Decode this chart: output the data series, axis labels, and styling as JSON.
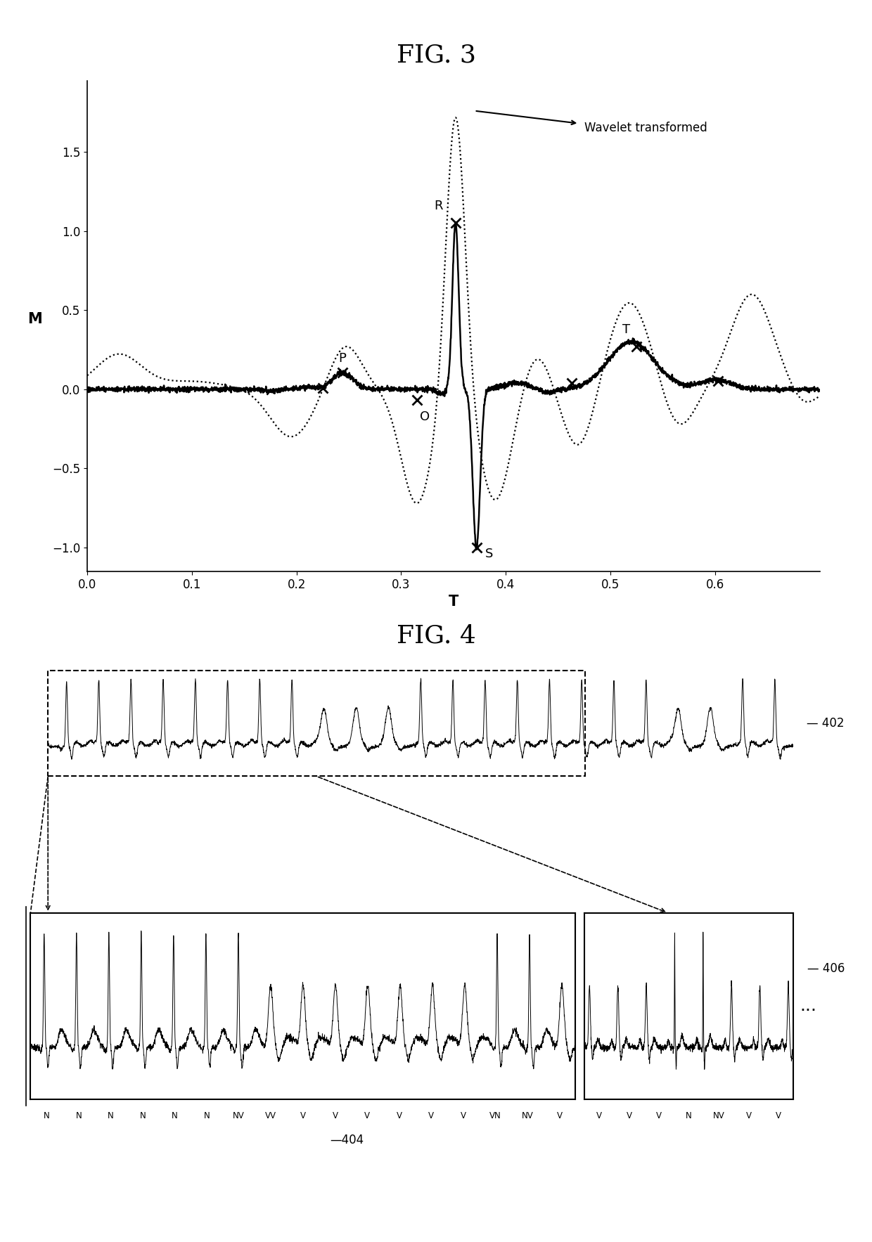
{
  "fig3_title": "FIG. 3",
  "fig4_title": "FIG. 4",
  "xlabel": "T",
  "ylabel": "M",
  "xlim": [
    0.0,
    0.7
  ],
  "ylim": [
    -1.15,
    1.95
  ],
  "yticks": [
    -1.0,
    -0.5,
    0.0,
    0.5,
    1.0,
    1.5
  ],
  "xticks": [
    0.0,
    0.1,
    0.2,
    0.3,
    0.4,
    0.5,
    0.6
  ],
  "annotation_wavelet": "Wavelet transformed",
  "label_402": "402",
  "label_404": "404",
  "label_406": "406",
  "ecg_labels_bottom": [
    "N",
    "N",
    "N",
    "N",
    "N",
    "N",
    "NV",
    "VV",
    "V",
    "V",
    "V",
    "V",
    "V",
    "V",
    "VN",
    "NV",
    "V"
  ],
  "ecg_labels_right": [
    "V",
    "V",
    "V",
    "N",
    "NV",
    "V",
    "V"
  ],
  "bg_color": "#ffffff",
  "line_color": "#000000",
  "title_fontsize": 26,
  "axis_label_fontsize": 15,
  "tick_fontsize": 12,
  "annotation_fontsize": 12,
  "marker_size": 10,
  "marker_lw": 2,
  "solid_lw": 1.8,
  "dotted_lw": 1.6,
  "ecg_lw": 0.7
}
